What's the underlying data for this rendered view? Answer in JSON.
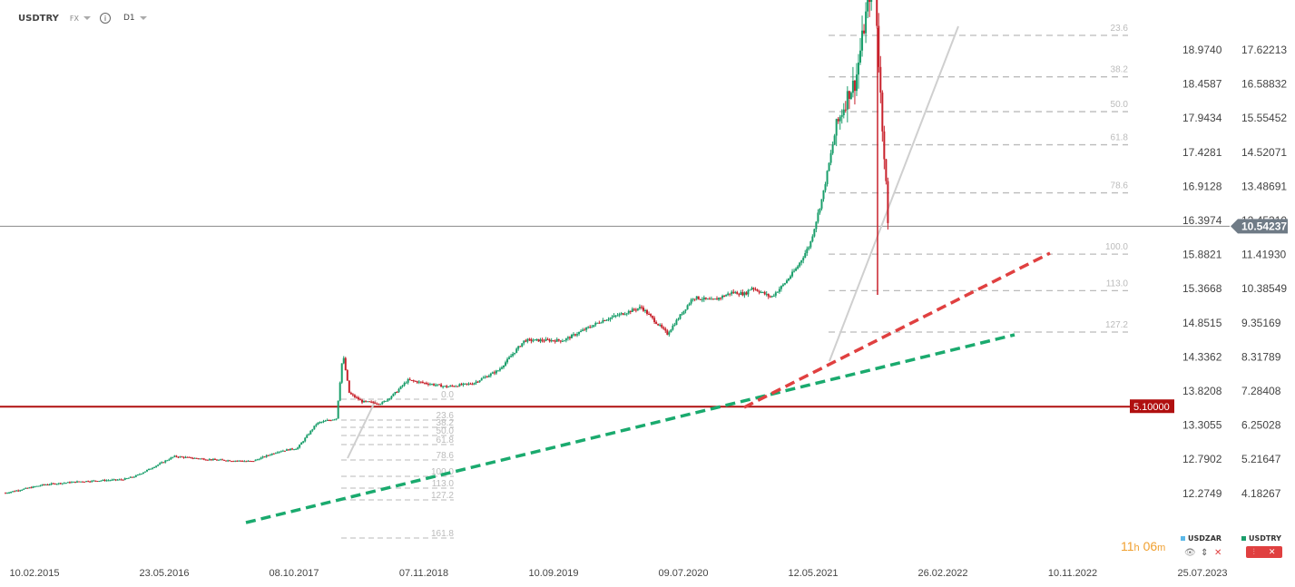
{
  "header": {
    "symbol": "USDTRY",
    "market": "FX",
    "timeframe": "D1"
  },
  "timer": {
    "hours": "11",
    "h_unit": "h",
    "minutes": "06",
    "m_unit": "m"
  },
  "legend": [
    {
      "name": "USDZAR",
      "color": "#5bb8e8"
    },
    {
      "name": "USDTRY",
      "color": "#1a9e6b"
    }
  ],
  "colors": {
    "up_candle": "#1a9e6b",
    "down_candle": "#c8212b",
    "support_line": "#1aaa6e",
    "resistance_line": "#e04040",
    "horizontal_level": "#b01010",
    "fib_lines": "#bbbbbb",
    "current_price_badge": "#6f7b86"
  },
  "chart_data": {
    "type": "line",
    "title": "USDTRY",
    "x_labels": [
      "10.02.2015",
      "23.05.2016",
      "08.10.2017",
      "07.11.2018",
      "10.09.2019",
      "09.07.2020",
      "12.05.2021",
      "26.02.2022",
      "10.11.2022",
      "25.07.2023"
    ],
    "left_axis_labels": [
      "18.9740",
      "18.4587",
      "17.9434",
      "17.4281",
      "16.9128",
      "16.3974",
      "15.8821",
      "15.3668",
      "14.8515",
      "14.3362",
      "13.8208",
      "13.3055",
      "12.7902",
      "12.2749"
    ],
    "right_axis_labels": [
      "17.62213",
      "16.58832",
      "15.55452",
      "14.52071",
      "13.48691",
      "12.45310",
      "11.41930",
      "10.38549",
      "9.35169",
      "8.31789",
      "7.28408",
      "6.25028",
      "5.21647",
      "4.18267"
    ],
    "y_range_usdtry": [
      3.0,
      18.7
    ],
    "current_price": "10.54237",
    "horizontal_level": "5.10000",
    "series": [
      {
        "name": "USDTRY",
        "x_index": [
          0,
          0.3,
          0.6,
          0.9,
          1.0,
          1.3,
          1.6,
          1.9,
          2.1,
          2.25,
          2.4,
          2.55,
          2.6,
          2.65,
          2.75,
          2.9,
          3.0,
          3.1,
          3.4,
          3.6,
          3.8,
          4.0,
          4.3,
          4.6,
          4.9,
          5.1,
          5.3,
          5.45,
          5.6,
          5.7,
          5.75,
          5.8,
          5.9,
          6.0,
          6.1,
          6.2,
          6.3,
          6.4,
          6.5,
          6.55,
          6.65,
          6.7,
          6.72,
          6.75,
          6.78,
          6.8
        ],
        "values": [
          2.5,
          2.75,
          2.85,
          2.9,
          3.0,
          3.6,
          3.5,
          3.45,
          3.75,
          3.85,
          4.6,
          4.75,
          6.7,
          5.5,
          5.25,
          5.2,
          5.5,
          5.9,
          5.7,
          5.8,
          6.2,
          7.1,
          7.1,
          7.7,
          8.1,
          7.3,
          8.4,
          8.3,
          8.55,
          8.5,
          8.7,
          8.6,
          8.4,
          8.8,
          9.3,
          10.0,
          11.5,
          13.5,
          14.6,
          14.9,
          17.4,
          18.3,
          16.2,
          14.0,
          12.3,
          10.54
        ]
      }
    ],
    "fib_retracement_large": {
      "levels": [
        "0.0",
        "23.6",
        "38.2",
        "50.0",
        "61.8",
        "78.6",
        "100.0",
        "113.0",
        "127.2"
      ],
      "prices": [
        18.35,
        16.3,
        15.05,
        14.0,
        13.0,
        11.55,
        9.7,
        8.6,
        7.35
      ]
    },
    "fib_retracement_small": {
      "levels": [
        "0.0",
        "23.6",
        "38.2",
        "50.0",
        "61.8",
        "78.6",
        "100.0",
        "113.0",
        "127.2",
        "161.8"
      ]
    },
    "trendlines": [
      {
        "name": "support",
        "from": {
          "x": "2017-07",
          "y": 3.95
        },
        "to": {
          "x": "2022-09",
          "y": 10.9
        }
      },
      {
        "name": "resistance",
        "from": {
          "x": "2020-11",
          "y": 7.5
        },
        "to": {
          "x": "2022-10",
          "y": 14.7
        }
      }
    ]
  }
}
